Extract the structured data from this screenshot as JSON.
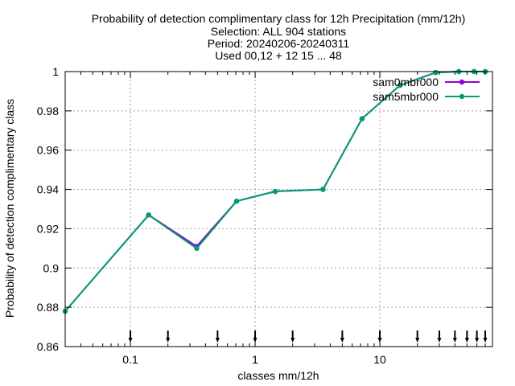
{
  "chart_data": {
    "type": "line",
    "title_lines": [
      "Probability of detection complimentary class  for 12h Precipitation (mm/12h)",
      "Selection: ALL    904 stations",
      "Period: 20240206-20240311",
      "Used 00,12 + 12 15 ... 48"
    ],
    "xlabel": "classes mm/12h",
    "ylabel": "Probability of detection complimentary class",
    "x_scale": "log",
    "xlim": [
      0.03,
      80
    ],
    "ylim": [
      0.86,
      1.0
    ],
    "x_ticks": [
      {
        "value": 0.1,
        "label": "0.1"
      },
      {
        "value": 1,
        "label": "1"
      },
      {
        "value": 10,
        "label": "10"
      }
    ],
    "y_ticks": [
      {
        "value": 0.86,
        "label": "0.86"
      },
      {
        "value": 0.88,
        "label": "0.88"
      },
      {
        "value": 0.9,
        "label": "0.9"
      },
      {
        "value": 0.92,
        "label": "0.92"
      },
      {
        "value": 0.94,
        "label": "0.94"
      },
      {
        "value": 0.96,
        "label": "0.96"
      },
      {
        "value": 0.98,
        "label": "0.98"
      },
      {
        "value": 1.0,
        "label": "1"
      }
    ],
    "grid": true,
    "legend_position": "top-right",
    "class_markers": [
      0.1,
      0.2,
      0.5,
      1,
      2,
      5,
      10,
      20,
      30,
      40,
      50,
      60,
      70
    ],
    "series": [
      {
        "name": "sam0mbr000",
        "color": "#9400d3",
        "marker": "filled-circle",
        "x": [
          0.03,
          0.14,
          0.34,
          0.71,
          1.45,
          3.5,
          7.2,
          14.5,
          28,
          43,
          57,
          70
        ],
        "y": [
          0.878,
          0.927,
          0.911,
          0.934,
          0.939,
          0.94,
          0.976,
          0.993,
          0.9995,
          1.0,
          1.0,
          1.0
        ]
      },
      {
        "name": "sam5mbr000",
        "color": "#009e73",
        "marker": "filled-circle",
        "x": [
          0.03,
          0.14,
          0.34,
          0.71,
          1.45,
          3.5,
          7.2,
          14.5,
          28,
          43,
          57,
          70
        ],
        "y": [
          0.878,
          0.927,
          0.91,
          0.934,
          0.939,
          0.94,
          0.976,
          0.993,
          0.9995,
          1.0,
          1.0,
          1.0
        ]
      }
    ]
  }
}
